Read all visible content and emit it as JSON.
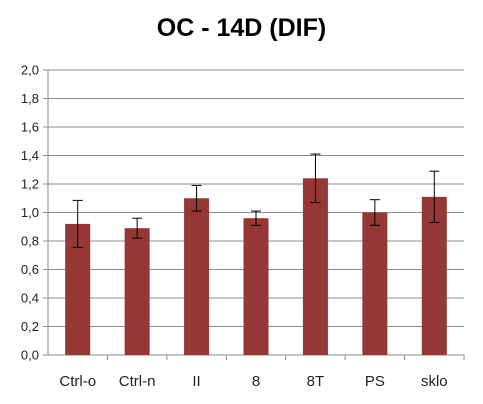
{
  "chart_data": {
    "type": "bar",
    "title": "OC - 14D (DIF)",
    "xlabel": "",
    "ylabel": "",
    "categories": [
      "Ctrl-o",
      "Ctrl-n",
      "II",
      "8",
      "8T",
      "PS",
      "sklo"
    ],
    "series": [
      {
        "values": [
          0.92,
          0.89,
          1.1,
          0.96,
          1.24,
          1.0,
          1.11
        ],
        "error": [
          0.165,
          0.07,
          0.09,
          0.05,
          0.17,
          0.09,
          0.18
        ]
      }
    ],
    "ylim": [
      0,
      2.0
    ],
    "yticks": [
      "0,0",
      "0,2",
      "0,4",
      "0,6",
      "0,8",
      "1,0",
      "1,2",
      "1,4",
      "1,6",
      "1,8",
      "2,0"
    ],
    "grid": true,
    "legend": "none",
    "colors": {
      "bar": "#953735",
      "grid": "#8c8c8c",
      "axis": "#8c8c8c",
      "error": "#000000"
    }
  }
}
